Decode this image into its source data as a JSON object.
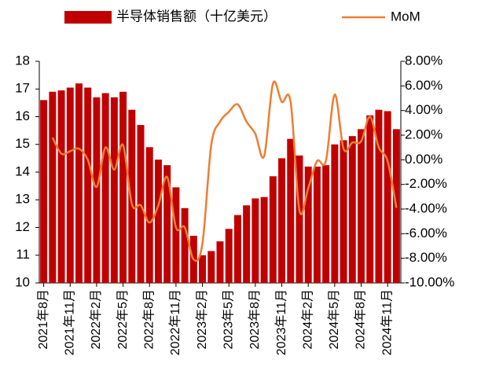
{
  "chart_data": {
    "type": "bar_line",
    "categories": [
      "2021年8月",
      null,
      null,
      "2021年11月",
      null,
      null,
      "2022年2月",
      null,
      null,
      "2022年5月",
      null,
      null,
      "2022年8月",
      null,
      null,
      "2022年11月",
      null,
      null,
      "2023年2月",
      null,
      null,
      "2023年5月",
      null,
      null,
      "2023年8月",
      null,
      null,
      "2023年11月",
      null,
      null,
      "2024年2月",
      null,
      null,
      "2024年5月",
      null,
      null,
      "2024年8月",
      null,
      null,
      "2024年11月",
      null
    ],
    "series": [
      {
        "name": "半导体销售额（十亿美元）",
        "type": "bar",
        "color": "#c00000",
        "values": [
          16.6,
          16.9,
          16.95,
          17.05,
          17.2,
          17.05,
          16.7,
          16.85,
          16.7,
          16.9,
          16.25,
          15.7,
          14.9,
          14.45,
          14.25,
          13.45,
          12.7,
          11.7,
          11.0,
          11.15,
          11.5,
          11.95,
          12.45,
          12.8,
          13.05,
          13.1,
          13.85,
          14.5,
          15.2,
          14.6,
          14.2,
          14.2,
          14.25,
          15.0,
          15.15,
          15.3,
          15.55,
          16.05,
          16.25,
          16.2,
          15.55
        ]
      },
      {
        "name": "MoM",
        "type": "line",
        "axis": "y2",
        "color": "#ed7d31",
        "values": [
          null,
          1.8,
          0.5,
          0.7,
          0.9,
          0.0,
          -2.2,
          1.0,
          -0.8,
          1.2,
          -3.6,
          -3.7,
          -5.1,
          -3.7,
          -1.4,
          -5.5,
          -5.5,
          -8.1,
          -6.8,
          1.2,
          3.1,
          3.9,
          4.5,
          3.1,
          2.1,
          0.3,
          6.2,
          4.7,
          4.7,
          -4.1,
          -2.3,
          -0.1,
          -0.1,
          5.3,
          0.9,
          1.4,
          1.5,
          3.5,
          1.0,
          -0.1,
          -3.9
        ]
      }
    ],
    "ylim": [
      10,
      18
    ],
    "yticks": [
      10,
      11,
      12,
      13,
      14,
      15,
      16,
      17,
      18
    ],
    "y2lim": [
      -10,
      8
    ],
    "y2ticks": [
      {
        "value": -10,
        "label": "-10.00%"
      },
      {
        "value": -8,
        "label": "-8.00%"
      },
      {
        "value": -6,
        "label": "-6.00%"
      },
      {
        "value": -4,
        "label": "-4.00%"
      },
      {
        "value": -2,
        "label": "-2.00%"
      },
      {
        "value": 0,
        "label": "0.00%"
      },
      {
        "value": 2,
        "label": "2.00%"
      },
      {
        "value": 4,
        "label": "4.00%"
      },
      {
        "value": 6,
        "label": "6.00%"
      },
      {
        "value": 8,
        "label": "8.00%"
      }
    ],
    "legend": "top"
  }
}
